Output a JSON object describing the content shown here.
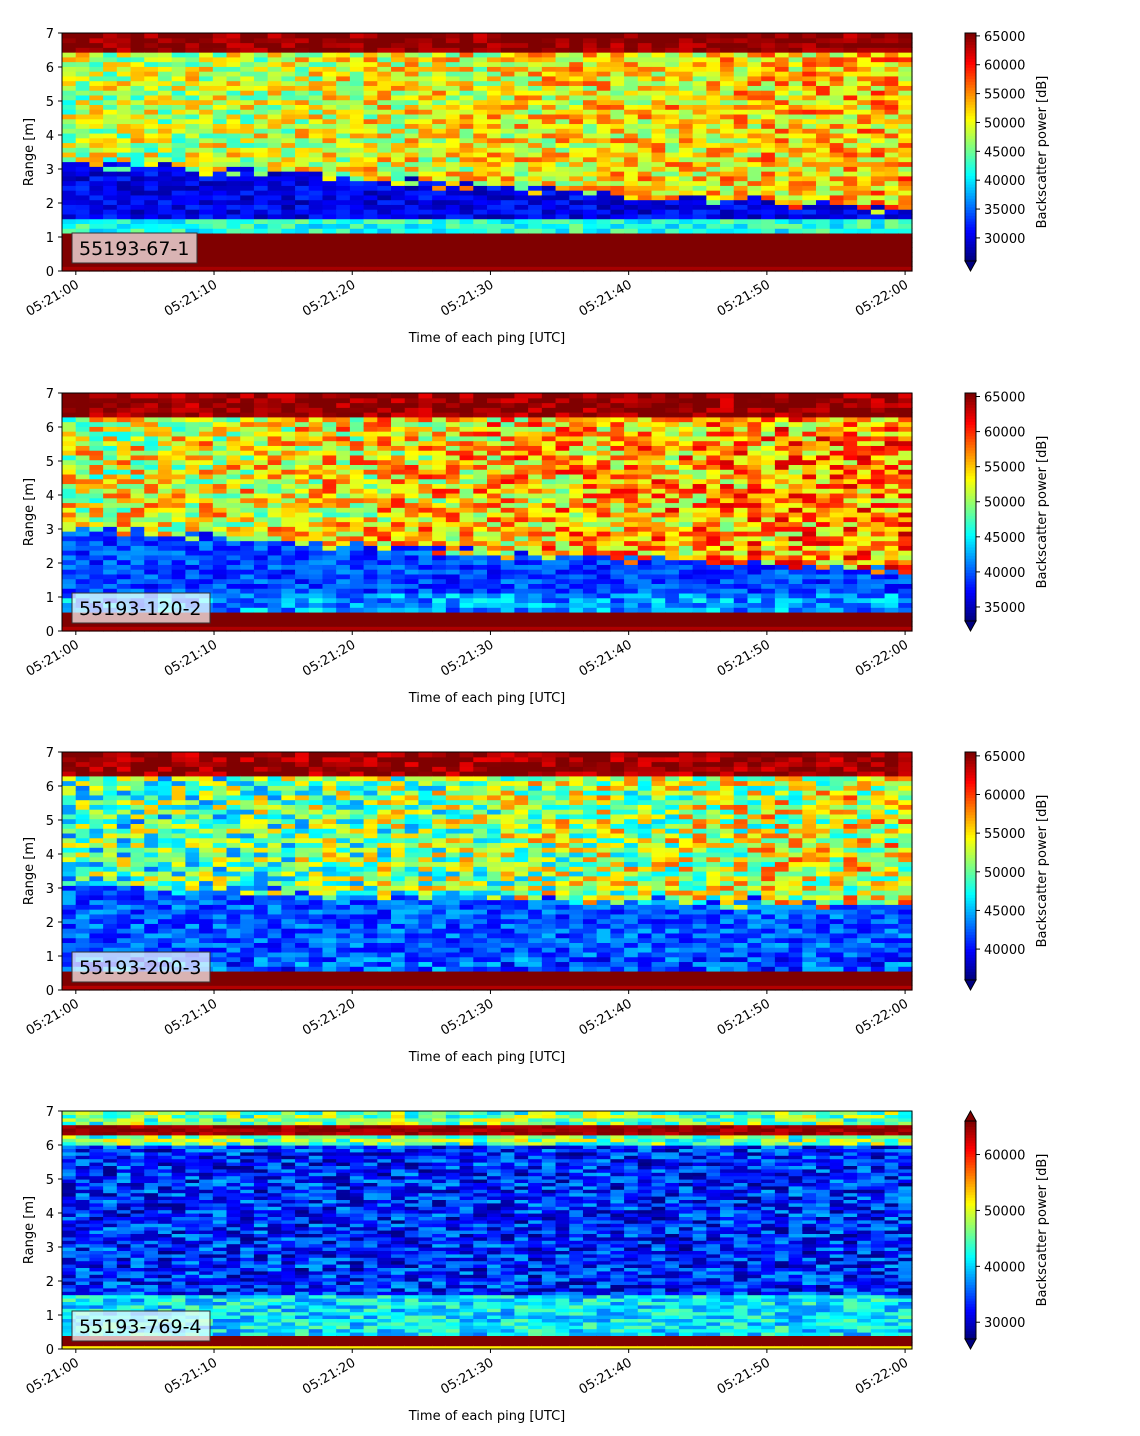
{
  "chart_data": [
    {
      "type": "heatmap",
      "label": "55193-67-1",
      "x_ticks": [
        "05:21:00",
        "05:21:10",
        "05:21:20",
        "05:21:30",
        "05:21:40",
        "05:21:50",
        "05:22:00"
      ],
      "xlabel": "Time of each ping [UTC]",
      "ylabel": "Range [m]",
      "y_ticks": [
        0,
        1,
        2,
        3,
        4,
        5,
        6,
        7
      ],
      "ylim": [
        0,
        7
      ],
      "xlim_seconds": [
        -1,
        60.5
      ],
      "colorbar": {
        "label": "Backscatter power [dB]",
        "min": 26000,
        "max": 65500,
        "ticks": [
          30000,
          35000,
          40000,
          45000,
          50000,
          55000,
          60000,
          65000
        ],
        "extend": "min"
      },
      "colormap": "jet",
      "structure": {
        "strong_band": [
          0.2,
          1.1
        ],
        "transition_edge_start": 3.2,
        "transition_edge_end": 1.8,
        "top_band_base": 6.4,
        "background": 48000,
        "bottom_level": 29000
      }
    },
    {
      "type": "heatmap",
      "label": "55193-120-2",
      "x_ticks": [
        "05:21:00",
        "05:21:10",
        "05:21:20",
        "05:21:30",
        "05:21:40",
        "05:21:50",
        "05:22:00"
      ],
      "xlabel": "Time of each ping [UTC]",
      "ylabel": "Range [m]",
      "y_ticks": [
        0,
        1,
        2,
        3,
        4,
        5,
        6,
        7
      ],
      "ylim": [
        0,
        7
      ],
      "xlim_seconds": [
        -1,
        60.5
      ],
      "colorbar": {
        "label": "Backscatter power [dB]",
        "min": 33000,
        "max": 65500,
        "ticks": [
          35000,
          40000,
          45000,
          50000,
          55000,
          60000,
          65000
        ],
        "extend": "min"
      },
      "colormap": "jet",
      "structure": {
        "strong_band": [
          0.15,
          0.6
        ],
        "transition_edge_start": 3.0,
        "transition_edge_end": 1.7,
        "top_band_base": 6.3,
        "background": 52000,
        "bottom_level": 38000
      }
    },
    {
      "type": "heatmap",
      "label": "55193-200-3",
      "x_ticks": [
        "05:21:00",
        "05:21:10",
        "05:21:20",
        "05:21:30",
        "05:21:40",
        "05:21:50",
        "05:22:00"
      ],
      "xlabel": "Time of each ping [UTC]",
      "ylabel": "Range [m]",
      "y_ticks": [
        0,
        1,
        2,
        3,
        4,
        5,
        6,
        7
      ],
      "ylim": [
        0,
        7
      ],
      "xlim_seconds": [
        -1,
        60.5
      ],
      "colorbar": {
        "label": "Backscatter power [dB]",
        "min": 36000,
        "max": 65500,
        "ticks": [
          40000,
          45000,
          50000,
          55000,
          60000,
          65000
        ],
        "extend": "min"
      },
      "colormap": "jet",
      "structure": {
        "strong_band": [
          0.15,
          0.5
        ],
        "transition_edge_start": 3.0,
        "transition_edge_end": 2.5,
        "top_band_base": 6.3,
        "background": 49000,
        "bottom_level": 41000
      }
    },
    {
      "type": "heatmap",
      "label": "55193-769-4",
      "x_ticks": [
        "05:21:00",
        "05:21:10",
        "05:21:20",
        "05:21:30",
        "05:21:40",
        "05:21:50",
        "05:22:00"
      ],
      "xlabel": "Time of each ping [UTC]",
      "ylabel": "Range [m]",
      "y_ticks": [
        0,
        1,
        2,
        3,
        4,
        5,
        6,
        7
      ],
      "ylim": [
        0,
        7
      ],
      "xlim_seconds": [
        -1,
        60.5
      ],
      "colorbar": {
        "label": "Backscatter power [dB]",
        "min": 27000,
        "max": 66000,
        "ticks": [
          30000,
          40000,
          50000,
          60000
        ],
        "extend": "both"
      },
      "colormap": "jet",
      "structure": {
        "strong_band": [
          0.1,
          0.35
        ],
        "top_line": 6.4,
        "background": 33000,
        "bottom_level": 35000
      }
    }
  ]
}
